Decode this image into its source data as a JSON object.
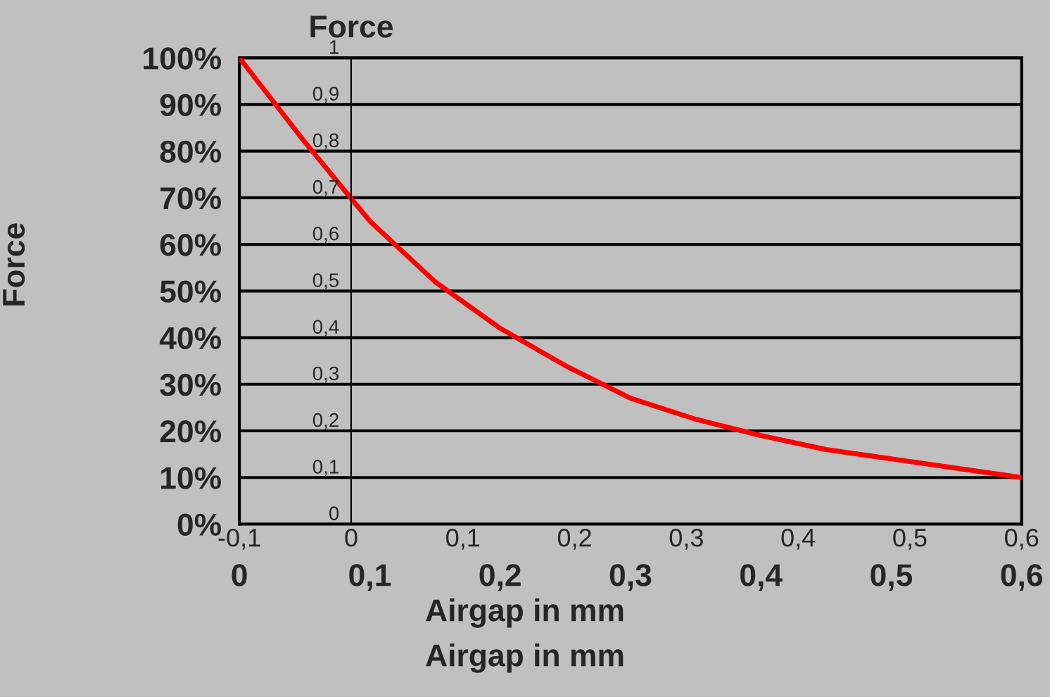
{
  "chart_data": {
    "type": "line",
    "xlabel": "Airgap in mm",
    "x2label": "Airgap in mm",
    "ylabel": "Force",
    "y2label": "Force",
    "series": [
      {
        "color": "#ff0000",
        "x": [
          0,
          0.05,
          0.1,
          0.15,
          0.2,
          0.25,
          0.3,
          0.35,
          0.4,
          0.45,
          0.5,
          0.55,
          0.6
        ],
        "values": [
          1.0,
          0.82,
          0.65,
          0.52,
          0.42,
          0.34,
          0.27,
          0.225,
          0.19,
          0.16,
          0.14,
          0.12,
          0.1
        ]
      }
    ],
    "xlim": [
      0,
      0.6
    ],
    "xticks": [
      0,
      {
        "value": 0.1,
        "label": "0,1"
      },
      {
        "value": 0.2,
        "label": "0,2"
      },
      {
        "value": 0.3,
        "label": "0,3"
      },
      {
        "value": 0.4,
        "label": "0,4"
      },
      {
        "value": 0.5,
        "label": "0,5"
      },
      {
        "value": 0.6,
        "label": "0,6"
      }
    ],
    "ylim": [
      0,
      1
    ],
    "yticks": [
      {
        "value": 0,
        "label": "0%"
      },
      {
        "value": 0.1,
        "label": "10%"
      },
      {
        "value": 0.2,
        "label": "20%"
      },
      {
        "value": 0.3,
        "label": "30%"
      },
      {
        "value": 0.4,
        "label": "40%"
      },
      {
        "value": 0.5,
        "label": "50%"
      },
      {
        "value": 0.6,
        "label": "60%"
      },
      {
        "value": 0.7,
        "label": "70%"
      },
      {
        "value": 0.8,
        "label": "80%"
      },
      {
        "value": 0.9,
        "label": "90%"
      },
      {
        "value": 1,
        "label": "100%"
      }
    ],
    "x2lim": [
      -0.1,
      0.6
    ],
    "x2ticks": [
      {
        "value": -0.1,
        "label": "-0,1"
      },
      0,
      {
        "value": 0.1,
        "label": "0,1"
      },
      {
        "value": 0.2,
        "label": "0,2"
      },
      {
        "value": 0.3,
        "label": "0,3"
      },
      {
        "value": 0.4,
        "label": "0,4"
      },
      {
        "value": 0.5,
        "label": "0,5"
      },
      {
        "value": 0.6,
        "label": "0,6"
      }
    ],
    "y2lim": [
      0,
      1
    ],
    "y2ticks": [
      0,
      {
        "value": 0.1,
        "label": "0,1"
      },
      {
        "value": 0.2,
        "label": "0,2"
      },
      {
        "value": 0.3,
        "label": "0,3"
      },
      {
        "value": 0.4,
        "label": "0,4"
      },
      {
        "value": 0.5,
        "label": "0,5"
      },
      {
        "value": 0.6,
        "label": "0,6"
      },
      {
        "value": 0.7,
        "label": "0,7"
      },
      {
        "value": 0.8,
        "label": "0,8"
      },
      {
        "value": 0.9,
        "label": "0,9"
      },
      1
    ],
    "grid": "y",
    "marker": "none",
    "line_style": "solid"
  }
}
